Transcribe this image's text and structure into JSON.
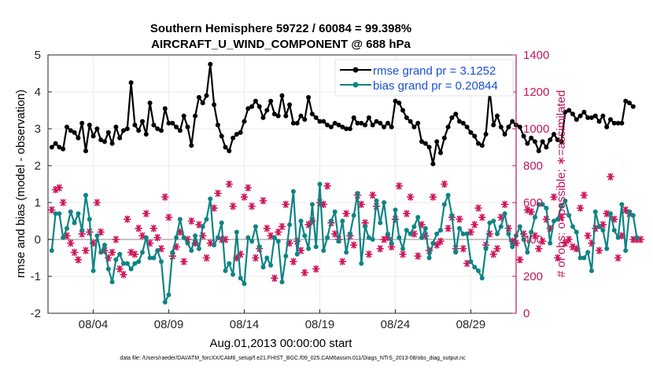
{
  "chart_data": {
    "type": "line",
    "title": "Southern Hemisphere 59722 / 60084 = 99.398%",
    "subtitle": "AIRCRAFT_U_WIND_COMPONENT @ 688 hPa",
    "xlabel": "Aug.01,2013 00:00:00 start",
    "ylabel_left": "rmse and bias (model - observation)",
    "ylabel_right": "# of obs: o=possible; ∗=assimilated",
    "ylim_left": [
      -2,
      5
    ],
    "ylim_right": [
      0,
      1400
    ],
    "xlim": [
      1.0,
      32.0
    ],
    "x_ticks": [
      4,
      9,
      14,
      19,
      24,
      29
    ],
    "x_tick_labels": [
      "08/04",
      "08/09",
      "08/14",
      "08/19",
      "08/24",
      "08/29"
    ],
    "y_ticks_left": [
      -2,
      -1,
      0,
      1,
      2,
      3,
      4,
      5
    ],
    "y_tick_labels_left": [
      "-2",
      "-1",
      "0",
      "1",
      "2",
      "3",
      "4",
      "5"
    ],
    "y_ticks_right": [
      0,
      200,
      400,
      600,
      800,
      1000,
      1200,
      1400
    ],
    "y_tick_labels_right": [
      "0",
      "200",
      "400",
      "600",
      "800",
      "1000",
      "1200",
      "1400"
    ],
    "grid": true,
    "legend_position": "top-right",
    "colors": {
      "rmse": "#000000",
      "bias": "#0f8484",
      "obs": "#d0145a",
      "zero": "#b0b0b0",
      "right_axis": "#c0155a",
      "legend_text": "#1a4fd6"
    },
    "series": [
      {
        "name": "rmse grand pr = 3.1252",
        "x_start": 1.25,
        "x_step": 0.25,
        "values": [
          2.5,
          2.6,
          2.5,
          2.45,
          3.05,
          2.95,
          2.9,
          2.75,
          3.15,
          2.4,
          3.1,
          2.8,
          3.0,
          2.7,
          2.65,
          2.9,
          2.6,
          3.05,
          2.75,
          2.95,
          3.0,
          4.25,
          3.1,
          2.95,
          3.2,
          2.85,
          3.7,
          3.1,
          3.0,
          2.95,
          3.55,
          3.15,
          3.15,
          3.05,
          2.95,
          3.35,
          3.05,
          2.55,
          3.35,
          3.85,
          3.7,
          3.9,
          4.75,
          3.65,
          3.1,
          2.8,
          2.5,
          2.4,
          2.75,
          2.85,
          2.9,
          3.2,
          3.55,
          3.6,
          3.75,
          3.6,
          3.3,
          3.5,
          3.75,
          3.4,
          3.35,
          3.9,
          3.35,
          3.65,
          3.15,
          3.15,
          3.35,
          3.25,
          3.85,
          3.4,
          3.3,
          3.2,
          3.2,
          3.1,
          3.05,
          3.15,
          3.1,
          3.05,
          3.0,
          3.0,
          3.3,
          3.15,
          3.15,
          3.1,
          3.3,
          3.1,
          3.2,
          3.15,
          3.05,
          3.15,
          3.05,
          3.75,
          3.7,
          3.5,
          3.3,
          3.2,
          3.05,
          3.15,
          2.65,
          2.6,
          2.5,
          2.05,
          2.65,
          2.35,
          2.75,
          3.05,
          3.3,
          3.4,
          3.2,
          3.15,
          3.05,
          2.9,
          2.8,
          2.6,
          2.55,
          2.85,
          4.05,
          3.1,
          3.35,
          3.05,
          2.85,
          3.05,
          3.2,
          3.1,
          3.05,
          2.8,
          2.6,
          2.75,
          2.65,
          2.4,
          2.65,
          2.5,
          2.7,
          2.85,
          2.7,
          2.65,
          3.45,
          3.5,
          3.4,
          3.25,
          3.35,
          3.45,
          3.3,
          3.3,
          3.35,
          3.2,
          3.35,
          3.05,
          3.25,
          3.15,
          3.15,
          3.15,
          3.75,
          3.7,
          3.6
        ]
      },
      {
        "name": "bias grand pr = 0.20844",
        "x_start": 1.25,
        "x_step": 0.25,
        "values": [
          -0.3,
          0.7,
          0.7,
          0.05,
          0.3,
          0.75,
          0.45,
          0.7,
          0.25,
          1.2,
          0.55,
          -0.85,
          0.1,
          -0.35,
          -0.15,
          -0.8,
          -1.15,
          -0.55,
          -0.4,
          -0.65,
          -0.65,
          -0.8,
          -0.65,
          -0.6,
          -0.35,
          0.05,
          -0.5,
          -0.5,
          -0.3,
          -0.6,
          -1.7,
          -1.5,
          -0.35,
          0.05,
          0.55,
          0.05,
          -0.1,
          -0.3,
          0.1,
          -0.25,
          0.35,
          0.55,
          1.1,
          -0.15,
          0.05,
          0.45,
          -0.85,
          -0.65,
          -0.95,
          0.2,
          -1.05,
          -1.2,
          0.05,
          -0.05,
          0.35,
          -0.2,
          -0.75,
          -0.5,
          -0.7,
          0.05,
          -0.05,
          -1.15,
          -0.45,
          0.4,
          1.3,
          -0.4,
          0.5,
          0.1,
          -0.25,
          0.95,
          -0.2,
          1.5,
          -0.3,
          0.05,
          0.5,
          0.75,
          -0.05,
          0.5,
          -0.35,
          0.15,
          0.65,
          1.25,
          -0.65,
          0.35,
          0.05,
          0.0,
          1.05,
          0.45,
          1.0,
          0.15,
          -0.1,
          0.8,
          0.05,
          -0.25,
          0.25,
          0.15,
          0.35,
          0.6,
          0.05,
          0.3,
          -0.5,
          -0.1,
          0.15,
          0.25,
          0.95,
          1.2,
          0.65,
          -0.35,
          0.3,
          0.15,
          0.15,
          -0.6,
          -0.75,
          -0.85,
          -1.05,
          -0.25,
          0.45,
          0.5,
          0.15,
          0.35,
          0.7,
          0.15,
          -0.2,
          0.1,
          0.35,
          0.0,
          -0.35,
          0.2,
          0.6,
          0.95,
          0.95,
          0.85,
          -0.1,
          0.5,
          0.55,
          0.9,
          1.05,
          0.65,
          0.35,
          0.2,
          -0.5,
          -0.5,
          -0.35,
          -0.85,
          0.75,
          0.35,
          0.25,
          -0.25,
          0.7,
          0.25,
          0.05,
          0.95,
          -0.3,
          0.75,
          0.65,
          0.05
        ]
      },
      {
        "name": "obs assimilated",
        "x_start": 1.25,
        "x_step": 0.25,
        "values": [
          560,
          670,
          680,
          600,
          420,
          380,
          330,
          290,
          430,
          340,
          440,
          380,
          600,
          440,
          340,
          300,
          330,
          400,
          240,
          210,
          510,
          330,
          320,
          460,
          420,
          540,
          380,
          460,
          410,
          350,
          630,
          520,
          310,
          360,
          440,
          280,
          400,
          500,
          380,
          480,
          420,
          300,
          380,
          570,
          650,
          400,
          400,
          700,
          580,
          300,
          320,
          630,
          680,
          580,
          300,
          350,
          610,
          460,
          420,
          190,
          440,
          470,
          590,
          380,
          280,
          390,
          340,
          220,
          480,
          500,
          240,
          600,
          590,
          690,
          490,
          430,
          400,
          280,
          540,
          420,
          370,
          640,
          590,
          490,
          320,
          640,
          580,
          350,
          400,
          410,
          360,
          510,
          690,
          320,
          540,
          630,
          430,
          310,
          480,
          420,
          340,
          630,
          370,
          390,
          700,
          460,
          520,
          350,
          510,
          350,
          270,
          440,
          480,
          570,
          520,
          370,
          430,
          320,
          350,
          520,
          590,
          460,
          390,
          380,
          290,
          430,
          560,
          550,
          420,
          350,
          390,
          510,
          460,
          630,
          300,
          520,
          380,
          400,
          360,
          350,
          570,
          640,
          420,
          380,
          460,
          340,
          480,
          540,
          740,
          510,
          300,
          420,
          560,
          540,
          400,
          400,
          400
        ]
      }
    ]
  },
  "footnote": "data file: /Users/raeder/DAI/ATM_forcXX/CAM6_setup/f.e21.FHIST_BGC.f09_025.CAM6assim.011/Diags_NTrS_2013-08/obs_diag_output.nc"
}
